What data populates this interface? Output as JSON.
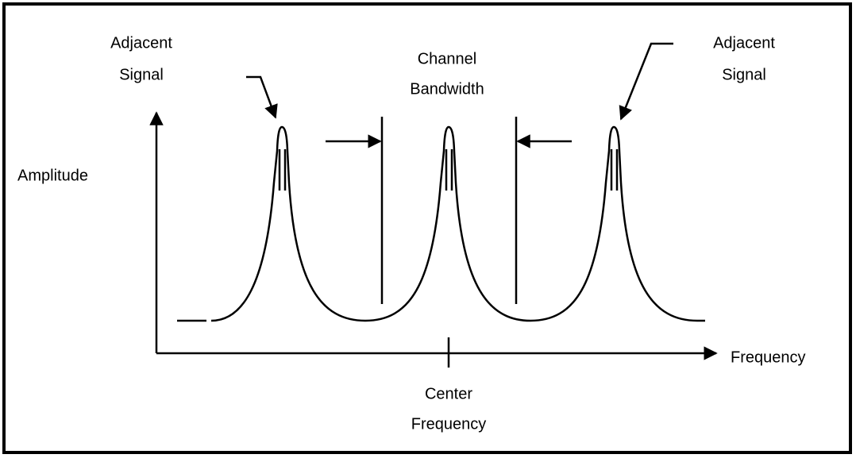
{
  "left_signal": {
    "lines": [
      "Adjacent",
      "Signal"
    ]
  },
  "right_signal": {
    "lines": [
      "Adjacent",
      "Signal"
    ]
  },
  "channel_bandwidth": {
    "lines": [
      "Channel",
      "Bandwidth"
    ]
  },
  "y_axis_label": "Amplitude",
  "x_axis_label": "Frequency",
  "center_frequency": {
    "lines": [
      "Center",
      "Frequency"
    ]
  }
}
